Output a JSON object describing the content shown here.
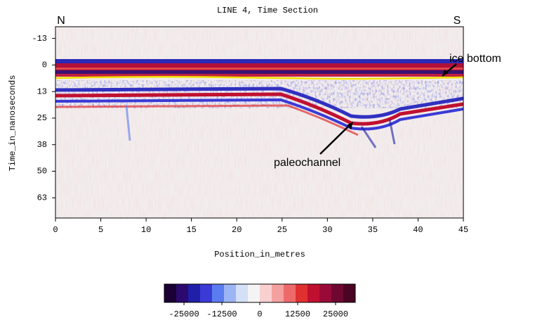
{
  "chart_data": {
    "type": "heatmap",
    "title": "LINE 4, Time Section",
    "x_label": "Position_in_metres",
    "y_label": "Time_in_nanoseconds",
    "xlim": [
      0,
      45
    ],
    "xticks": [
      0,
      5,
      10,
      15,
      20,
      25,
      30,
      35,
      40,
      45
    ],
    "ylim": [
      72,
      -18
    ],
    "yticks": [
      {
        "value": -12.5,
        "label": "-13"
      },
      0,
      {
        "value": 12.5,
        "label": "13"
      },
      25,
      {
        "value": 37.5,
        "label": "38"
      },
      50,
      {
        "value": 62.5,
        "label": "63"
      }
    ],
    "colorbar": {
      "lim": [
        -31500,
        31500
      ],
      "ticks": [
        -25000,
        -12500,
        0,
        12500,
        25000
      ],
      "colors": [
        "#1a0033",
        "#2a0a6e",
        "#1f1fa8",
        "#3a3ad6",
        "#5a7cf0",
        "#9db4f5",
        "#d4e0f8",
        "#f4f4f4",
        "#f8d0d0",
        "#f4a0a0",
        "#ee6a6a",
        "#e03030",
        "#c01030",
        "#9a0a38",
        "#6e0830",
        "#4a0424"
      ]
    },
    "annotations": {
      "north": "N",
      "south": "S",
      "ice_bottom": "ice bottom",
      "paleochannel": "paleochannel"
    }
  }
}
